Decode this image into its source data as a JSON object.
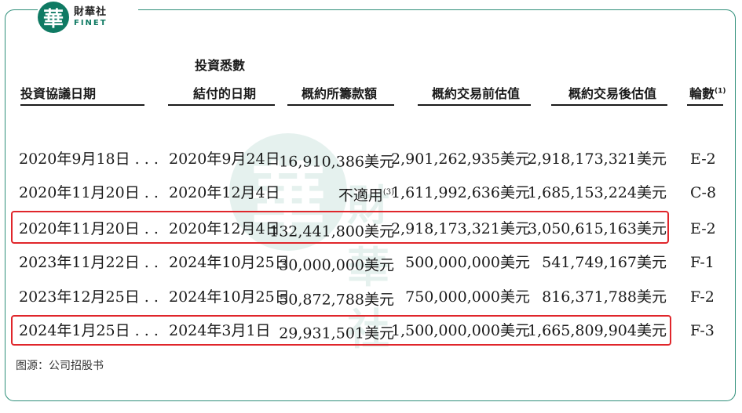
{
  "brand": {
    "mark": "華",
    "name_cn": "財華社",
    "name_en": "FINET"
  },
  "watermark": {
    "mark": "華",
    "text": "財華社"
  },
  "headers": {
    "col1": "投資協議日期",
    "col2_line1": "投資悉數",
    "col2_line2": "結付的日期",
    "col3": "概約所籌款額",
    "col4": "概約交易前估值",
    "col5": "概約交易後估值",
    "col6": "輪數",
    "col6_sup": "(1)"
  },
  "rows": [
    {
      "date": "2020年9月18日 . . .",
      "settle": "2020年9月24日",
      "raised": "16,910,386美元",
      "raised_sup": "",
      "pre": "2,901,262,935美元",
      "post": "2,918,173,321美元",
      "round": "E-2"
    },
    {
      "date": "2020年11月20日 . .",
      "settle": "2020年12月4日",
      "raised": "不適用",
      "raised_sup": "(3)",
      "pre": "1,611,992,636美元",
      "post": "1,685,153,224美元",
      "round": "C-8"
    },
    {
      "date": "2020年11月20日 . .",
      "settle": "2020年12月4日",
      "raised": "132,441,800美元",
      "raised_sup": "",
      "pre": "2,918,173,321美元",
      "post": "3,050,615,163美元",
      "round": "E-2"
    },
    {
      "date": "2023年11月22日 . .",
      "settle": "2024年10月25日",
      "raised": "30,000,000美元",
      "raised_sup": "",
      "pre": "500,000,000美元",
      "post": "541,749,167美元",
      "round": "F-1"
    },
    {
      "date": "2023年12月25日 . .",
      "settle": "2024年10月25日",
      "raised": "50,872,788美元",
      "raised_sup": "",
      "pre": "750,000,000美元",
      "post": "816,371,788美元",
      "round": "F-2"
    },
    {
      "date": "2024年1月25日 . . .",
      "settle": "2024年3月1日",
      "raised": "29,931,501美元",
      "raised_sup": "",
      "pre": "1,500,000,000美元",
      "post": "1,665,809,904美元",
      "round": "F-3"
    }
  ],
  "highlight_color": "#e0262b",
  "accent_color": "#0f7a63",
  "source": "图源：公司招股书"
}
